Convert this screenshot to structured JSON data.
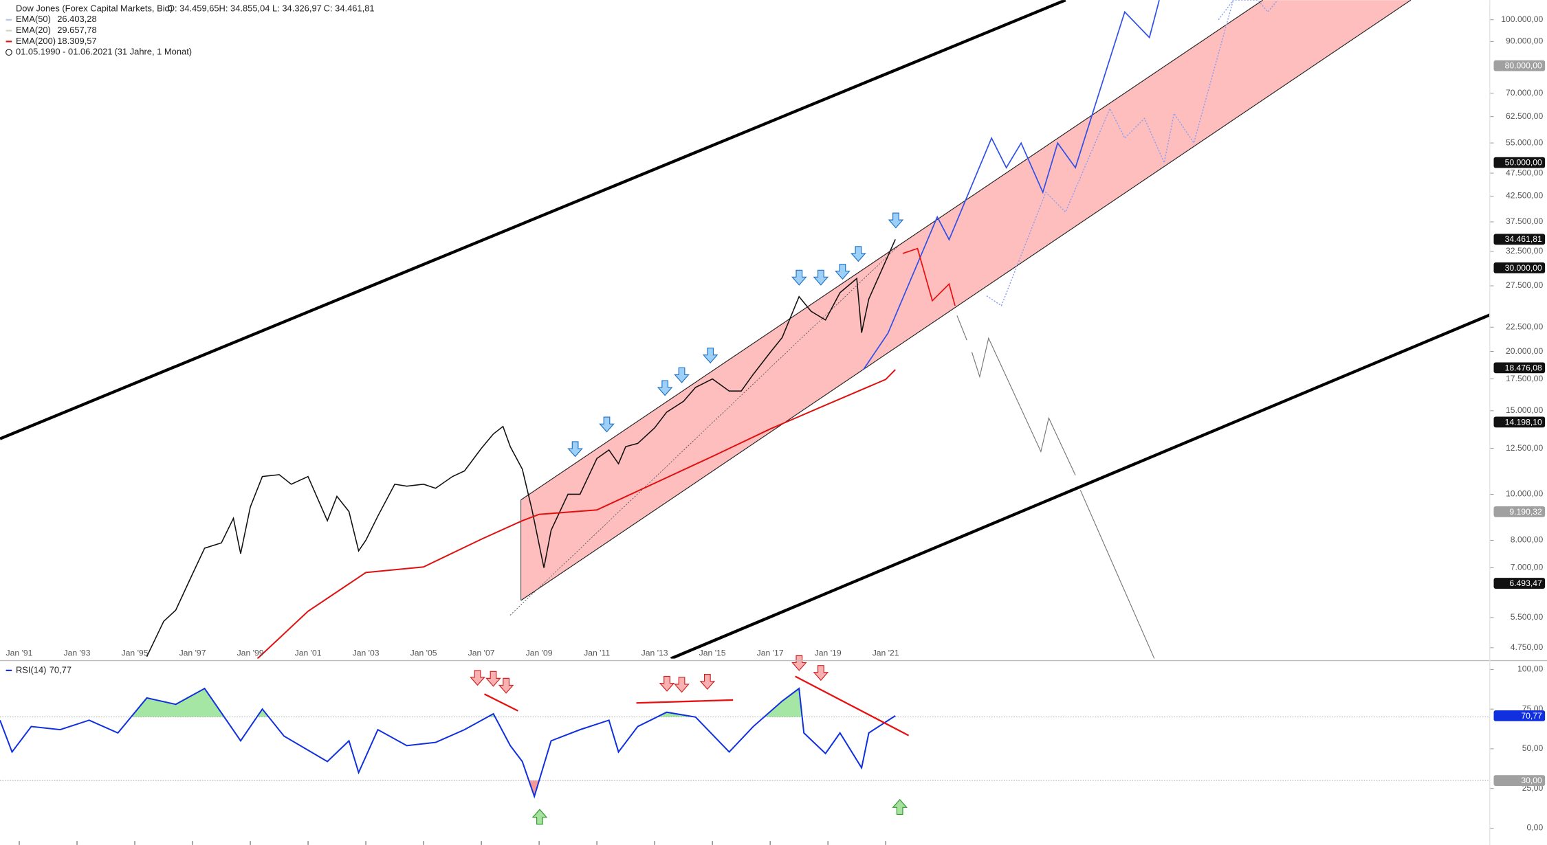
{
  "chart_data": [
    {
      "type": "line",
      "title": "Dow Jones (Forex Capital Markets, Bid)",
      "quote": [
        "O: 34.459,65",
        "H: 34.855,04",
        "L: 34.326,97",
        "C: 34.461,81"
      ],
      "legend": [
        {
          "name": "EMA(50)",
          "value": "26.403,28",
          "color": "#b8c4ee"
        },
        {
          "name": "EMA(20)",
          "value": "29.657,78",
          "color": "#c8d6c4"
        },
        {
          "name": "EMA(200)",
          "value": "18.309,57",
          "color": "#e01010"
        }
      ],
      "period": "01.05.1990 - 01.06.2021",
      "duration": "(31 Jahre, 1 Monat)",
      "log_scale": true,
      "xlim": [
        "1990-05",
        "2041-12"
      ],
      "ylim": [
        4506,
        110000
      ],
      "xticks": [
        {
          "value": "1991-01",
          "label": "Jan '91"
        },
        {
          "value": "1993-01",
          "label": "Jan '93"
        },
        {
          "value": "1995-01",
          "label": "Jan '95"
        },
        {
          "value": "1997-01",
          "label": "Jan '97"
        },
        {
          "value": "1999-01",
          "label": "Jan '99"
        },
        {
          "value": "2001-01",
          "label": "Jan '01"
        },
        {
          "value": "2003-01",
          "label": "Jan '03"
        },
        {
          "value": "2005-01",
          "label": "Jan '05"
        },
        {
          "value": "2007-01",
          "label": "Jan '07"
        },
        {
          "value": "2009-01",
          "label": "Jan '09"
        },
        {
          "value": "2011-01",
          "label": "Jan '11"
        },
        {
          "value": "2013-01",
          "label": "Jan '13"
        },
        {
          "value": "2015-01",
          "label": "Jan '15"
        },
        {
          "value": "2017-01",
          "label": "Jan '17"
        },
        {
          "value": "2019-01",
          "label": "Jan '19"
        },
        {
          "value": "2021-01",
          "label": "Jan '21"
        }
      ],
      "yticks": [
        {
          "value": 100000,
          "label": "100.000,00"
        },
        {
          "value": 90000,
          "label": "90.000,00"
        },
        {
          "value": 70000,
          "label": "70.000,00"
        },
        {
          "value": 62500,
          "label": "62.500,00"
        },
        {
          "value": 55000,
          "label": "55.000,00"
        },
        {
          "value": 47500,
          "label": "47.500,00"
        },
        {
          "value": 42500,
          "label": "42.500,00"
        },
        {
          "value": 37500,
          "label": "37.500,00"
        },
        {
          "value": 32500,
          "label": "32.500,00"
        },
        {
          "value": 27500,
          "label": "27.500,00"
        },
        {
          "value": 22500,
          "label": "22.500,00"
        },
        {
          "value": 20000,
          "label": "20.000,00"
        },
        {
          "value": 17500,
          "label": "17.500,00"
        },
        {
          "value": 15000,
          "label": "15.000,00"
        },
        {
          "value": 12500,
          "label": "12.500,00"
        },
        {
          "value": 10000,
          "label": "10.000,00"
        },
        {
          "value": 8000,
          "label": "8.000,00"
        },
        {
          "value": 7000,
          "label": "7.000,00"
        },
        {
          "value": 5500,
          "label": "5.500,00"
        },
        {
          "value": 4750,
          "label": "4.750,00"
        }
      ],
      "levels": [
        {
          "value": 80000,
          "label": "80.000,00",
          "color": "#a0a0a0"
        },
        {
          "value": 50000,
          "label": "50.000,00",
          "color": "#111111"
        },
        {
          "value": 34461.81,
          "label": "34.461,81",
          "color": "#111111"
        },
        {
          "value": 30000,
          "label": "30.000,00",
          "color": "#111111"
        },
        {
          "value": 18476.08,
          "label": "18.476,08",
          "color": "#111111"
        },
        {
          "value": 14198.1,
          "label": "14.198,10",
          "color": "#111111"
        },
        {
          "value": 9190.32,
          "label": "9.190,32",
          "color": "#a0a0a0"
        },
        {
          "value": 6493.47,
          "label": "6.493,47",
          "color": "#111111"
        }
      ],
      "series": [
        {
          "name": "Dow Jones",
          "color": "#111111",
          "x": [
            "1995-06",
            "1996-01",
            "1996-06",
            "1997-01",
            "1997-06",
            "1998-01",
            "1998-06",
            "1998-09",
            "1999-01",
            "1999-06",
            "2000-01",
            "2000-06",
            "2001-01",
            "2001-09",
            "2002-01",
            "2002-06",
            "2002-10",
            "2003-01",
            "2003-06",
            "2004-01",
            "2004-06",
            "2005-01",
            "2005-06",
            "2006-01",
            "2006-06",
            "2007-01",
            "2007-06",
            "2007-10",
            "2008-01",
            "2008-06",
            "2008-10",
            "2009-03",
            "2009-06",
            "2010-01",
            "2010-06",
            "2011-01",
            "2011-06",
            "2011-10",
            "2012-01",
            "2012-06",
            "2013-01",
            "2013-06",
            "2014-01",
            "2014-06",
            "2015-01",
            "2015-08",
            "2016-01",
            "2016-06",
            "2017-01",
            "2017-06",
            "2018-01",
            "2018-06",
            "2018-12",
            "2019-06",
            "2020-01",
            "2020-03",
            "2020-06",
            "2021-01",
            "2021-05"
          ],
          "values": [
            4550,
            5400,
            5700,
            6800,
            7700,
            7900,
            8900,
            7500,
            9400,
            10900,
            11000,
            10500,
            10900,
            8800,
            9900,
            9200,
            7600,
            8000,
            9000,
            10500,
            10400,
            10500,
            10300,
            10900,
            11200,
            12500,
            13400,
            13900,
            12600,
            11300,
            9300,
            7000,
            8400,
            10000,
            10000,
            11900,
            12400,
            11600,
            12600,
            12800,
            13800,
            14900,
            15700,
            16800,
            17500,
            16500,
            16500,
            17900,
            19900,
            21400,
            26100,
            24300,
            23300,
            26600,
            28500,
            21900,
            25800,
            31000,
            34461.81
          ]
        },
        {
          "name": "EMA(200)",
          "color": "#e01010",
          "x": [
            "1999-04",
            "2001-01",
            "2003-01",
            "2005-01",
            "2007-01",
            "2008-06",
            "2009-01",
            "2011-01",
            "2013-01",
            "2015-01",
            "2017-01",
            "2019-01",
            "2021-01",
            "2021-05"
          ],
          "values": [
            4506,
            5670,
            6840,
            7030,
            8040,
            8800,
            9070,
            9270,
            10550,
            12020,
            13730,
            15490,
            17460,
            18309.57
          ]
        }
      ]
    },
    {
      "type": "line",
      "title": "RSI(14)",
      "value_label": "70,77",
      "color": "#1030e0",
      "xlim": [
        "1990-05",
        "2041-12"
      ],
      "ylim": [
        -9.3,
        104.3
      ],
      "yticks": [
        {
          "value": 100,
          "label": "100,00"
        },
        {
          "value": 75,
          "label": "75,00"
        },
        {
          "value": 50,
          "label": "50,00"
        },
        {
          "value": 25,
          "label": "25,00"
        },
        {
          "value": 0,
          "label": "0,00"
        }
      ],
      "levels": [
        {
          "value": 70.77,
          "label": "70,77",
          "color": "#1030e0"
        },
        {
          "value": 30,
          "label": "30,00",
          "color": "#a0a0a0"
        }
      ],
      "overbought": 70,
      "oversold": 30,
      "x": [
        "1990-05",
        "1990-10",
        "1991-06",
        "1992-06",
        "1993-06",
        "1994-06",
        "1995-06",
        "1996-06",
        "1997-06",
        "1998-09",
        "1999-06",
        "2000-03",
        "2001-09",
        "2002-06",
        "2002-10",
        "2003-06",
        "2004-06",
        "2005-06",
        "2006-06",
        "2007-06",
        "2008-01",
        "2008-06",
        "2008-11",
        "2009-06",
        "2010-06",
        "2011-06",
        "2011-10",
        "2012-06",
        "2013-06",
        "2014-06",
        "2015-08",
        "2016-06",
        "2017-06",
        "2018-01",
        "2018-03",
        "2018-12",
        "2019-06",
        "2020-03",
        "2020-06",
        "2021-05"
      ],
      "values": [
        68,
        48,
        64,
        62,
        68,
        60,
        82,
        78,
        88,
        55,
        75,
        58,
        42,
        55,
        35,
        62,
        52,
        54,
        62,
        72,
        52,
        42,
        20,
        55,
        62,
        68,
        48,
        64,
        73,
        70,
        48,
        64,
        80,
        88,
        60,
        47,
        60,
        38,
        60,
        70.77
      ]
    }
  ]
}
